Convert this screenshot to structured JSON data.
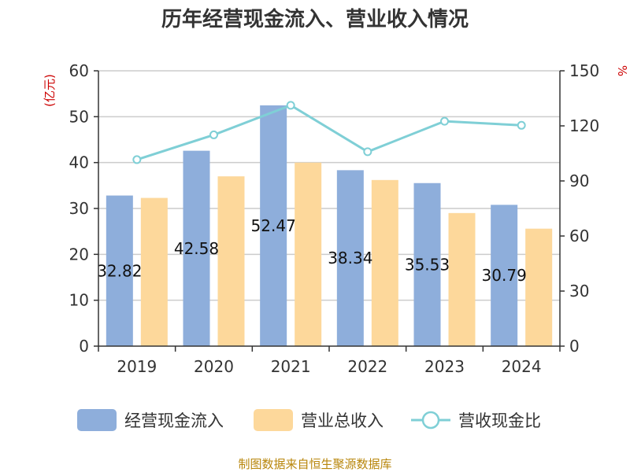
{
  "chart_data": {
    "type": "bar",
    "title": "历年经营现金流入、营业收入情况",
    "categories": [
      "2019",
      "2020",
      "2021",
      "2022",
      "2023",
      "2024"
    ],
    "series": [
      {
        "name": "经营现金流入",
        "axis": "left",
        "color": "#8eaedb",
        "values": [
          32.82,
          42.58,
          52.47,
          38.34,
          35.53,
          30.79
        ]
      },
      {
        "name": "营业总收入",
        "axis": "left",
        "color": "#fdd89b",
        "values": [
          32.3,
          37.0,
          40.0,
          36.2,
          29.0,
          25.6
        ]
      },
      {
        "name": "营收现金比",
        "axis": "right",
        "type": "line",
        "color": "#7fcfd6",
        "values": [
          101.6,
          115.1,
          131.2,
          105.9,
          122.5,
          120.3
        ]
      }
    ],
    "data_labels": [
      "32.82",
      "42.58",
      "52.47",
      "38.34",
      "35.53",
      "30.79"
    ],
    "left_axis": {
      "label": "(亿元)",
      "ylim": [
        0,
        60
      ],
      "ticks": [
        0,
        10,
        20,
        30,
        40,
        50,
        60
      ]
    },
    "right_axis": {
      "label": "%",
      "ylim": [
        0,
        150
      ],
      "ticks": [
        0,
        30,
        60,
        90,
        120,
        150
      ]
    },
    "legend_position": "bottom",
    "grid": true,
    "source": "制图数据来自恒生聚源数据库"
  }
}
